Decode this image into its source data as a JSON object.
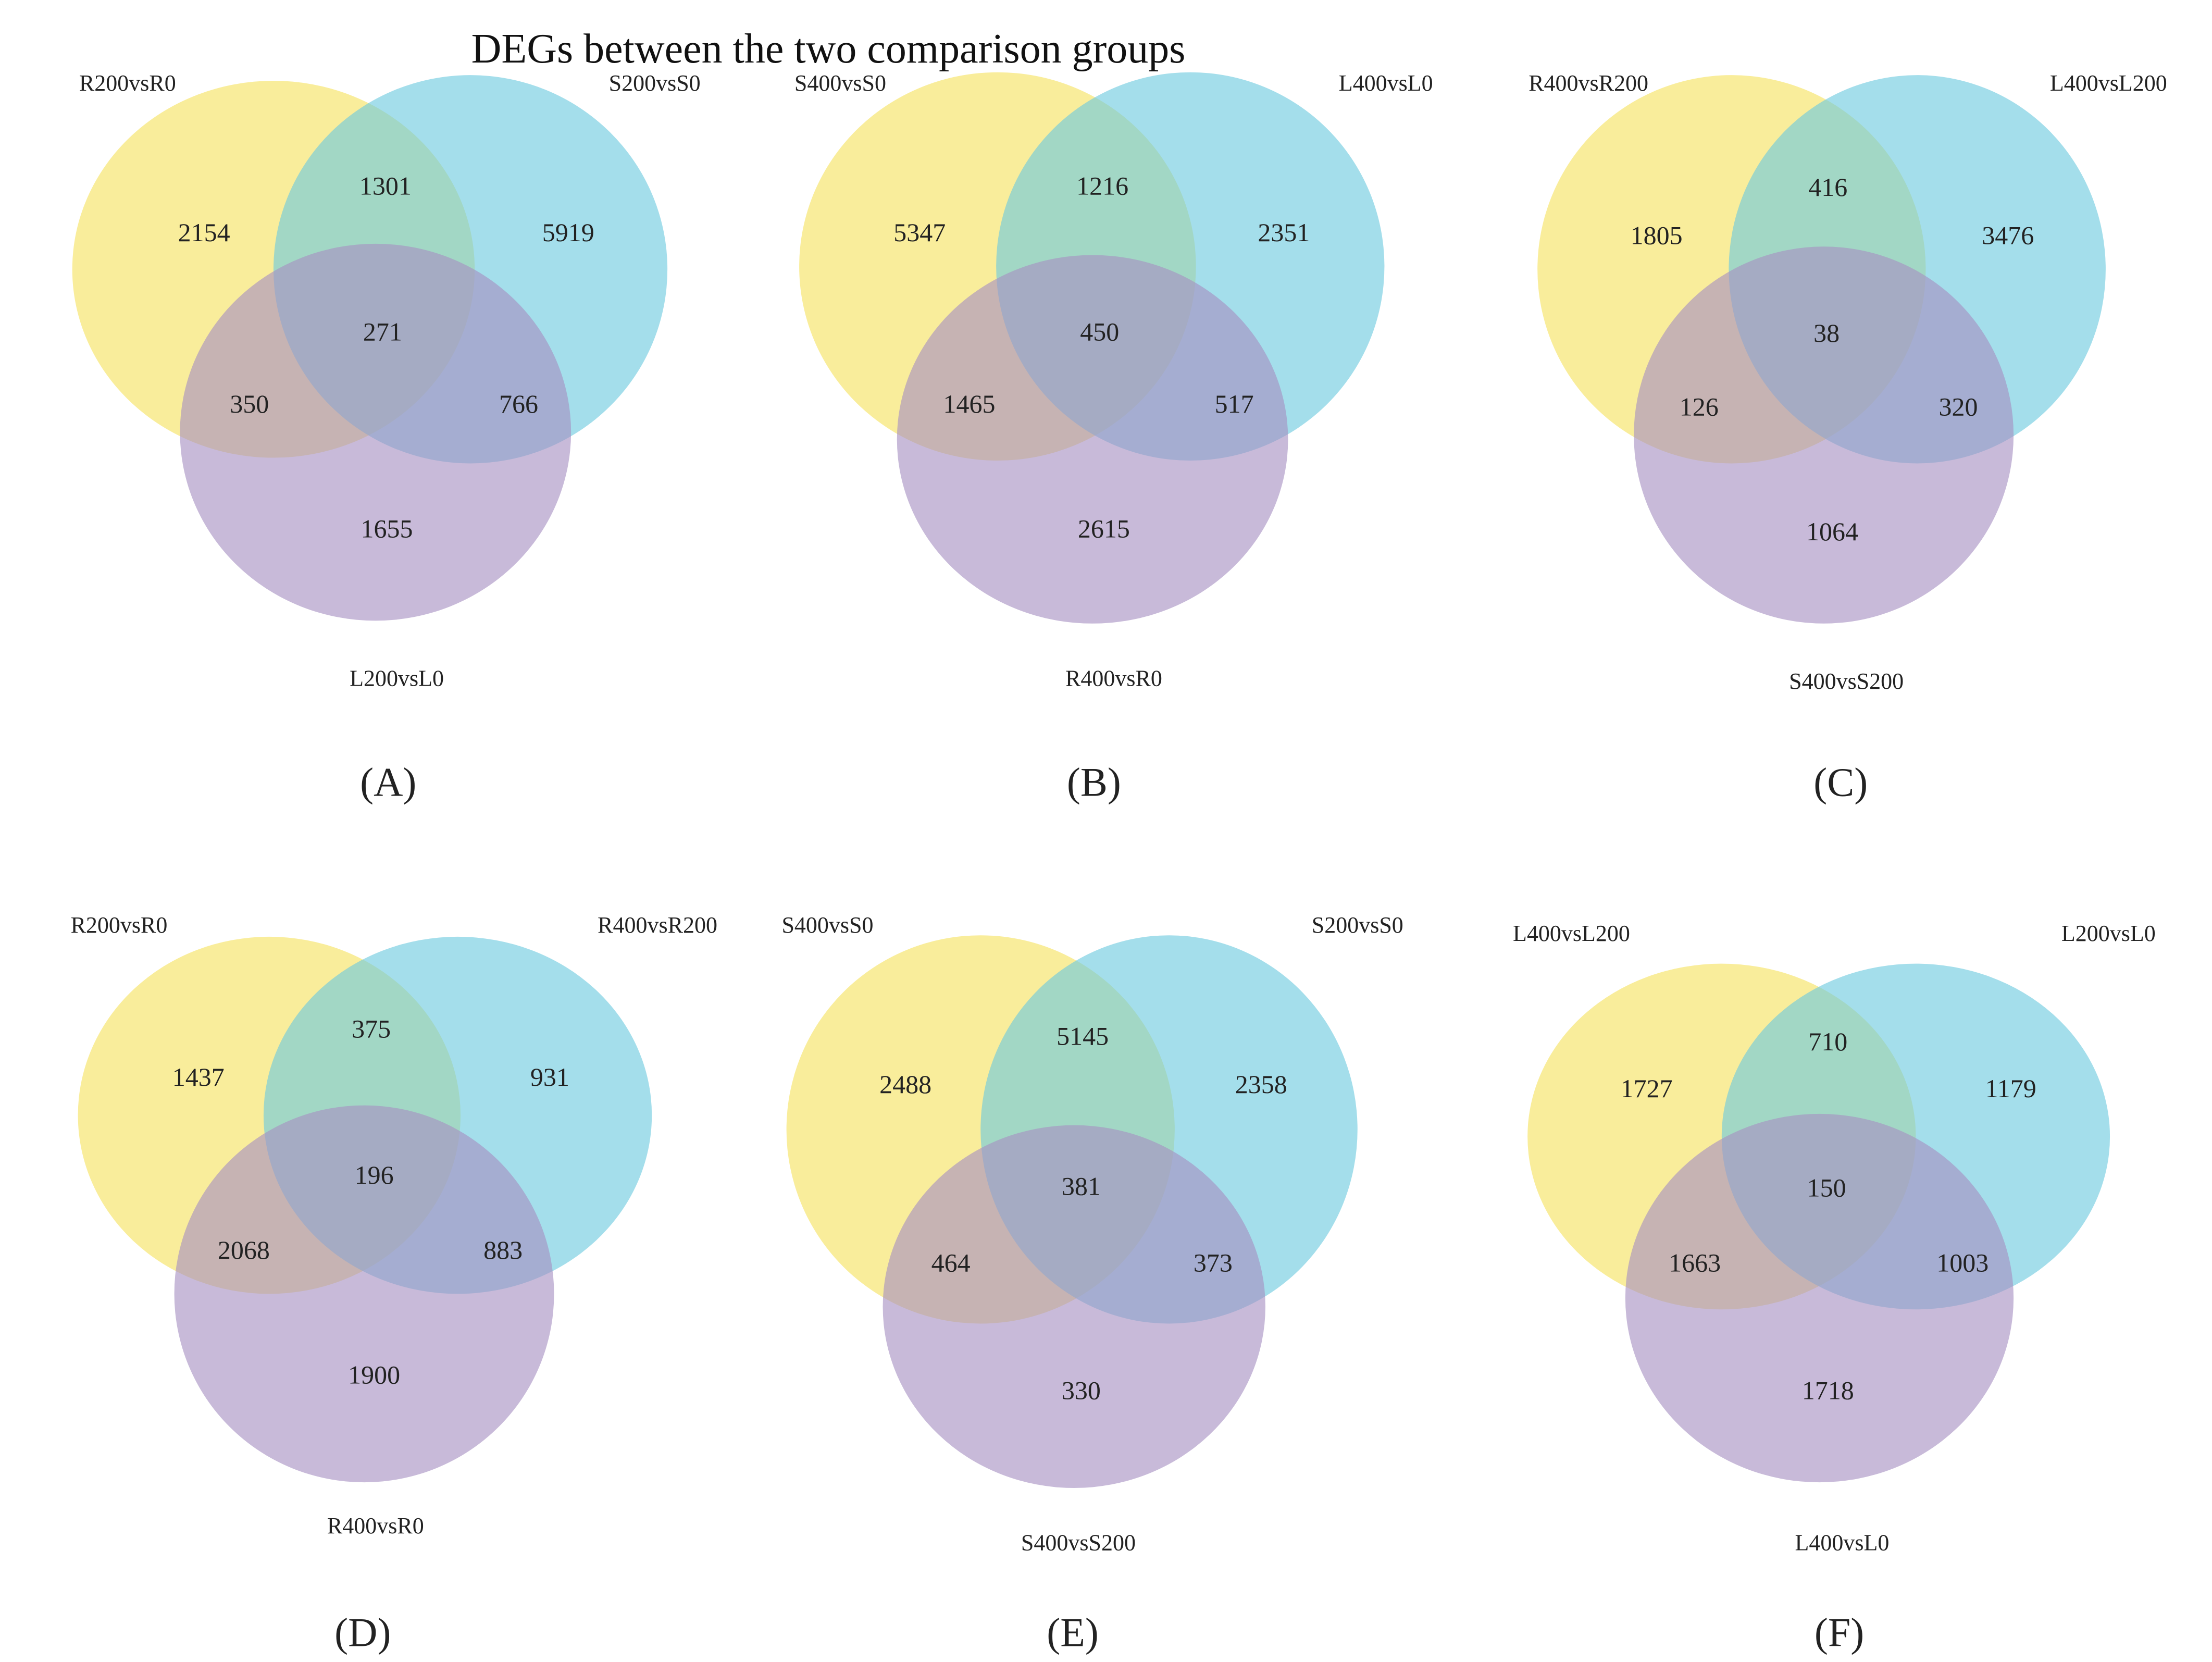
{
  "title": "DEGs between the two comparison groups",
  "colors": {
    "set1": "#f6e25e",
    "set2": "#6cc9df",
    "set3": "#a690c2"
  },
  "panels": [
    {
      "label": "(A)",
      "sets": [
        "R200vsR0",
        "S200vsS0",
        "L200vsL0"
      ],
      "counts": {
        "only1": "2154",
        "only2": "5919",
        "only3": "1655",
        "s12": "1301",
        "s13": "350",
        "s23": "766",
        "s123": "271"
      }
    },
    {
      "label": "(B)",
      "sets": [
        "S400vsS0",
        "L400vsL0",
        "R400vsR0"
      ],
      "counts": {
        "only1": "5347",
        "only2": "2351",
        "only3": "2615",
        "s12": "1216",
        "s13": "1465",
        "s23": "517",
        "s123": "450"
      }
    },
    {
      "label": "(C)",
      "sets": [
        "R400vsR200",
        "L400vsL200",
        "S400vsS200"
      ],
      "counts": {
        "only1": "1805",
        "only2": "3476",
        "only3": "1064",
        "s12": "416",
        "s13": "126",
        "s23": "320",
        "s123": "38"
      }
    },
    {
      "label": "(D)",
      "sets": [
        "R200vsR0",
        "R400vsR200",
        "R400vsR0"
      ],
      "counts": {
        "only1": "1437",
        "only2": "931",
        "only3": "1900",
        "s12": "375",
        "s13": "2068",
        "s23": "883",
        "s123": "196"
      }
    },
    {
      "label": "(E)",
      "sets": [
        "S400vsS0",
        "S200vsS0",
        "S400vsS200"
      ],
      "counts": {
        "only1": "2488",
        "only2": "2358",
        "only3": "330",
        "s12": "5145",
        "s13": "464",
        "s23": "373",
        "s123": "381"
      }
    },
    {
      "label": "(F)",
      "sets": [
        "L400vsL200",
        "L200vsL0",
        "L400vsL0"
      ],
      "counts": {
        "only1": "1727",
        "only2": "1179",
        "only3": "1718",
        "s12": "710",
        "s13": "1663",
        "s23": "1003",
        "s123": "150"
      }
    }
  ]
}
